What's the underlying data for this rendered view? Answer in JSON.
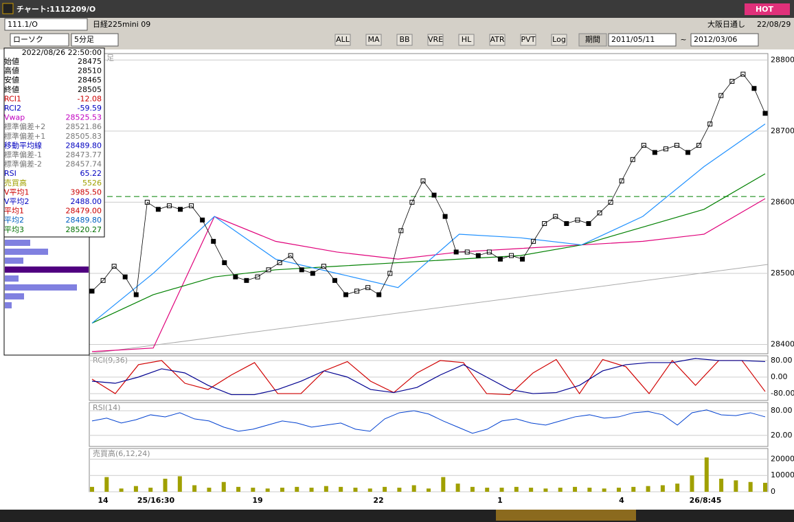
{
  "window": {
    "title": "チャート:1112209/O",
    "hot": "HOT"
  },
  "toolbar": {
    "code": "111.1/O",
    "name": "日経225mini 09",
    "chart_kind": "ローソク",
    "period": "5分足",
    "market": "大阪日通し",
    "date": "22/08/29",
    "range_label": "期間",
    "from": "2011/05/11",
    "sep": "~",
    "to": "2012/03/06",
    "buttons": [
      "ALL",
      "MA",
      "BB",
      "VRE",
      "HL",
      "ATR",
      "PVT",
      "Log"
    ]
  },
  "info_panel": {
    "datetime": "2022/08/26 22:50:00",
    "rows": [
      {
        "label": "始値",
        "value": "28475",
        "color": "#000"
      },
      {
        "label": "高値",
        "value": "28510",
        "color": "#000"
      },
      {
        "label": "安値",
        "value": "28465",
        "color": "#000"
      },
      {
        "label": "終値",
        "value": "28505",
        "color": "#000"
      },
      {
        "label": "RCI1",
        "value": "-12.08",
        "color": "#c00"
      },
      {
        "label": "RCI2",
        "value": "-59.59",
        "color": "#0000c0"
      },
      {
        "label": "Vwap",
        "value": "28525.53",
        "color": "#c000c0"
      },
      {
        "label": "標準偏差+2",
        "value": "28521.86",
        "color": "#777"
      },
      {
        "label": "標準偏差+1",
        "value": "28505.83",
        "color": "#777"
      },
      {
        "label": "移動平均線",
        "value": "28489.80",
        "color": "#0000c0"
      },
      {
        "label": "標準偏差-1",
        "value": "28473.77",
        "color": "#777"
      },
      {
        "label": "標準偏差-2",
        "value": "28457.74",
        "color": "#777"
      },
      {
        "label": "RSI",
        "value": "65.22",
        "color": "#0000c0"
      },
      {
        "label": "売買高",
        "value": "5526",
        "color": "#a0a000"
      },
      {
        "label": "V平均1",
        "value": "3985.50",
        "color": "#c00"
      },
      {
        "label": "V平均2",
        "value": "2488.00",
        "color": "#0000c0"
      },
      {
        "label": "平均1",
        "value": "28479.00",
        "color": "#c00"
      },
      {
        "label": "平均2",
        "value": "28489.80",
        "color": "#0060c0"
      },
      {
        "label": "平均3",
        "value": "28520.27",
        "color": "#007000"
      }
    ],
    "profile": [
      37,
      63,
      27,
      122,
      20,
      105,
      28,
      10
    ],
    "profile_color": "#8080e0",
    "profile_highlight": 3,
    "highlight_color": "#500080"
  },
  "price_chart": {
    "label": "足",
    "ylim": [
      28387,
      28809
    ],
    "yticks": [
      28400,
      28500,
      28600,
      28700,
      28800
    ],
    "close": [
      28475,
      28490,
      28510,
      28495,
      28470,
      28600,
      28590,
      28595,
      28590,
      28595,
      28575,
      28545,
      28515,
      28495,
      28490,
      28495,
      28505,
      28515,
      28525,
      28505,
      28500,
      28510,
      28490,
      28470,
      28475,
      28480,
      28470,
      28500,
      28560,
      28600,
      28630,
      28610,
      28580,
      28530,
      28530,
      28525,
      28530,
      28520,
      28525,
      28520,
      28545,
      28570,
      28580,
      28570,
      28575,
      28570,
      28585,
      28600,
      28630,
      28660,
      28680,
      28670,
      28675,
      28680,
      28670,
      28680,
      28710,
      28750,
      28770,
      28780,
      28760,
      28725
    ],
    "lines": [
      {
        "color": "#e0007a",
        "values": [
          28390,
          28395,
          28580,
          28545,
          28530,
          28520,
          28530,
          28535,
          28540,
          28545,
          28555,
          28605
        ]
      },
      {
        "color": "#008000",
        "values": [
          28430,
          28470,
          28495,
          28505,
          28510,
          28515,
          28520,
          28525,
          28540,
          28565,
          28590,
          28640
        ]
      },
      {
        "color": "#1e90ff",
        "values": [
          28430,
          28500,
          28580,
          28520,
          28500,
          28480,
          28555,
          28550,
          28540,
          28580,
          28650,
          28710
        ]
      }
    ],
    "dashed_level": 28608,
    "dashed_color": "#008000"
  },
  "x_labels": [
    "14",
    "25/16:30",
    "19",
    "22",
    "1",
    "4",
    "26/8:45"
  ],
  "rci_chart": {
    "label": "RCI(9,36)",
    "ylim": [
      -113,
      103
    ],
    "yticks": [
      {
        "value": 80,
        "label": "80.00"
      },
      {
        "value": 0,
        "label": "0.00"
      },
      {
        "value": -80,
        "label": "-80.00"
      }
    ],
    "series": [
      {
        "color": "#d00000",
        "values": [
          -10,
          -80,
          60,
          80,
          -30,
          -60,
          10,
          70,
          -80,
          -80,
          30,
          75,
          -20,
          -75,
          20,
          80,
          70,
          -80,
          -85,
          20,
          85,
          -80,
          85,
          50,
          -80,
          80,
          -40,
          80,
          80,
          -70
        ]
      },
      {
        "color": "#000090",
        "values": [
          -20,
          -30,
          0,
          40,
          20,
          -40,
          -85,
          -85,
          -60,
          -20,
          30,
          0,
          -60,
          -75,
          -50,
          10,
          60,
          0,
          -60,
          -80,
          -75,
          -40,
          30,
          60,
          70,
          70,
          90,
          80,
          80,
          75
        ]
      }
    ]
  },
  "rsi_chart": {
    "label": "RSI(14)",
    "ylim": [
      -7,
      100
    ],
    "yticks": [
      {
        "value": 80,
        "label": "80.00"
      },
      {
        "value": 20,
        "label": "20.00"
      }
    ],
    "color": "#0040d0",
    "values": [
      55,
      62,
      50,
      58,
      70,
      65,
      75,
      60,
      55,
      40,
      30,
      35,
      45,
      55,
      50,
      40,
      45,
      50,
      35,
      30,
      60,
      75,
      80,
      72,
      55,
      40,
      25,
      35,
      55,
      60,
      50,
      45,
      55,
      65,
      70,
      62,
      65,
      75,
      78,
      70,
      45,
      75,
      82,
      70,
      68,
      75,
      65
    ]
  },
  "volume_chart": {
    "label": "売買高(6,12,24)",
    "ylim": [
      0,
      26500
    ],
    "yticks": [
      0,
      10000,
      20000
    ],
    "color": "#a0a000",
    "values": [
      3000,
      9000,
      2000,
      3500,
      2500,
      8000,
      9500,
      4000,
      2500,
      6000,
      3000,
      2500,
      2000,
      2500,
      3000,
      2500,
      3500,
      3000,
      2500,
      2000,
      3000,
      2500,
      4000,
      2000,
      9000,
      5000,
      3000,
      2500,
      2500,
      3000,
      2500,
      2000,
      2500,
      3000,
      2500,
      2000,
      2500,
      3000,
      3500,
      4000,
      5000,
      10000,
      21000,
      8000,
      7000,
      6000,
      5500
    ]
  }
}
